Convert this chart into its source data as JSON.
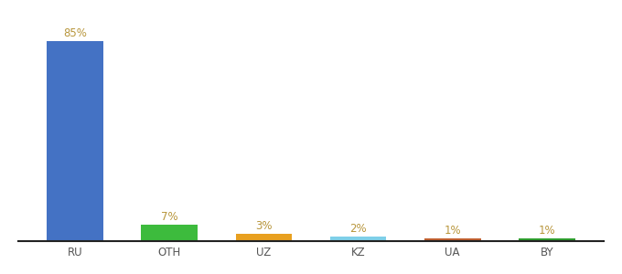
{
  "categories": [
    "RU",
    "OTH",
    "UZ",
    "KZ",
    "UA",
    "BY"
  ],
  "values": [
    85,
    7,
    3,
    2,
    1,
    1
  ],
  "bar_colors": [
    "#4472c4",
    "#3dbb3d",
    "#e8a020",
    "#7ecfe8",
    "#c06030",
    "#2e9e2e"
  ],
  "label_color": "#b8963c",
  "background_color": "#ffffff",
  "ylim": [
    0,
    93
  ],
  "bar_width": 0.6,
  "figsize": [
    6.8,
    3.0
  ],
  "dpi": 100
}
